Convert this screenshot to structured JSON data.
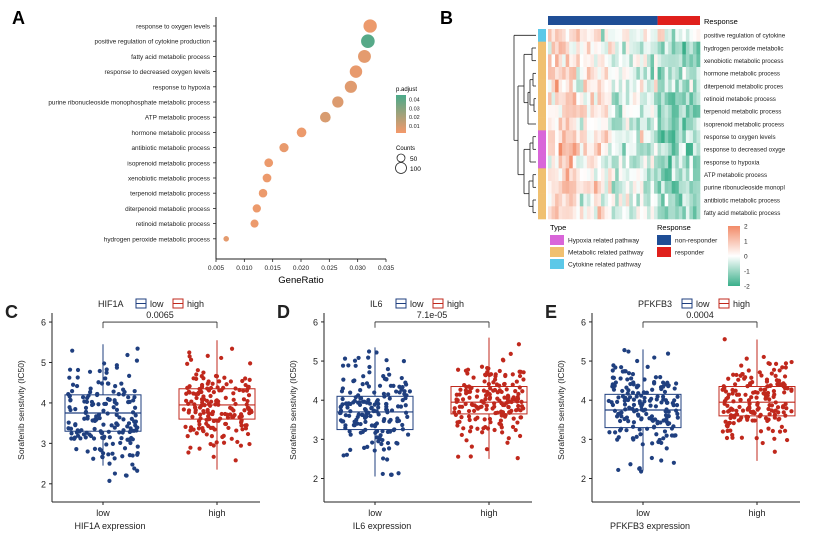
{
  "panels": {
    "A": {
      "label": "A",
      "chart_data": {
        "type": "scatter",
        "xlabel": "GeneRatio",
        "xlim": [
          0.005,
          0.035
        ],
        "xticks": [
          "0.005",
          "0.010",
          "0.015",
          "0.020",
          "0.025",
          "0.030",
          "0.035"
        ],
        "categories": [
          "response to oxygen levels",
          "positive regulation of cytokine production",
          "fatty acid metabolic process",
          "response to decreased oxygen levels",
          "response to hypoxia",
          "purine ribonucleoside monophosphate metabolic process",
          "ATP metabolic process",
          "hormone metabolic process",
          "antibiotic metabolic process",
          "isoprenoid metabolic process",
          "xenobiotic metabolic process",
          "terpenoid metabolic process",
          "diterpenoid metabolic process",
          "retinoid metabolic process",
          "hydrogen peroxide metabolic process"
        ],
        "gene_ratio": [
          0.0322,
          0.0318,
          0.0312,
          0.0297,
          0.0288,
          0.0265,
          0.0243,
          0.0201,
          0.017,
          0.0143,
          0.014,
          0.0133,
          0.0122,
          0.0118,
          0.0068
        ],
        "count": [
          108,
          110,
          104,
          100,
          98,
          90,
          84,
          76,
          72,
          68,
          68,
          66,
          64,
          62,
          40
        ],
        "p_adjust": [
          0.004,
          0.042,
          0.006,
          0.005,
          0.007,
          0.008,
          0.009,
          0.004,
          0.005,
          0.004,
          0.004,
          0.004,
          0.004,
          0.004,
          0.006
        ],
        "color_legend": {
          "title": "p.adjust",
          "ticks": [
            "0.04",
            "0.03",
            "0.02",
            "0.01"
          ],
          "range": [
            0.002,
            0.045
          ],
          "low_color": "#f4996b",
          "high_color": "#4aaa8a"
        },
        "size_legend": {
          "title": "Counts",
          "ticks": [
            "50",
            "100"
          ]
        }
      }
    },
    "B": {
      "label": "B",
      "chart_data": {
        "type": "heatmap",
        "response_header": "Response",
        "rows": [
          "positive regulation of cytokine",
          "hydrogen peroxide metabolic",
          "xenobiotic metabolic process",
          "hormone metabolic process",
          "diterpenoid metabolic proces",
          "retinoid metabolic process",
          "terpenoid metabolic process",
          "isoprenoid metabolic process",
          "response to oxygen levels",
          "response to decreased oxyge",
          "response to hypoxia",
          "ATP metabolic process",
          "purine ribonucleoside monopl",
          "antibiotic metabolic process",
          "fatty acid metabolic process"
        ],
        "row_type": [
          "cytokine",
          "metabolic",
          "metabolic",
          "metabolic",
          "metabolic",
          "metabolic",
          "metabolic",
          "metabolic",
          "hypoxia",
          "hypoxia",
          "hypoxia",
          "metabolic",
          "metabolic",
          "metabolic",
          "metabolic"
        ],
        "columns": {
          "non_responder": 31,
          "responder": 12
        },
        "value_range": [
          -2,
          2
        ],
        "type_legend": {
          "title": "Type",
          "items": [
            {
              "label": "Hypoxia related pathway",
              "color": "#d966d9"
            },
            {
              "label": "Metabolic related pathway",
              "color": "#f0c070"
            },
            {
              "label": "Cytokine related pathway",
              "color": "#5cc8e8"
            }
          ]
        },
        "response_legend": {
          "title": "Response",
          "items": [
            {
              "label": "non-responder",
              "color": "#1f4e96"
            },
            {
              "label": "responder",
              "color": "#e0201c"
            }
          ]
        },
        "scale_legend": {
          "ticks": [
            "2",
            "1",
            "0",
            "-1",
            "-2"
          ],
          "high_color": "#f28b68",
          "low_color": "#3aaf8a"
        }
      }
    },
    "C": {
      "label": "C",
      "chart_data": {
        "type": "box",
        "gene": "HIF1A",
        "legend_low": "low",
        "legend_high": "high",
        "ylabel": "Sorafenib senstivity (IC50)",
        "xlabel": "HIF1A expression",
        "categories": [
          "low",
          "high"
        ],
        "yticks": [
          "2",
          "3",
          "4",
          "5",
          "6"
        ],
        "ylim": [
          1.55,
          6.1
        ],
        "pvalue": "0.0065",
        "box": {
          "low": {
            "min": 2.45,
            "q1": 3.3,
            "median": 3.75,
            "q3": 4.2,
            "max": 5.45,
            "jitter_min": 1.65,
            "jitter_max": 5.45,
            "n": 180
          },
          "high": {
            "min": 2.35,
            "q1": 3.6,
            "median": 3.95,
            "q3": 4.35,
            "max": 5.55,
            "jitter_min": 2.35,
            "jitter_max": 5.6,
            "n": 180
          }
        }
      }
    },
    "D": {
      "label": "D",
      "chart_data": {
        "type": "box",
        "gene": "IL6",
        "legend_low": "low",
        "legend_high": "high",
        "ylabel": "Sorafenib senstivity (IC50)",
        "xlabel": "IL6 expression",
        "categories": [
          "low",
          "high"
        ],
        "yticks": [
          "2",
          "3",
          "4",
          "5",
          "6"
        ],
        "ylim": [
          1.4,
          6.1
        ],
        "pvalue": "7.1e-05",
        "box": {
          "low": {
            "min": 2.05,
            "q1": 3.25,
            "median": 3.7,
            "q3": 4.1,
            "max": 5.35,
            "jitter_min": 1.6,
            "jitter_max": 5.35,
            "n": 180
          },
          "high": {
            "min": 2.5,
            "q1": 3.65,
            "median": 3.95,
            "q3": 4.35,
            "max": 5.6,
            "jitter_min": 2.45,
            "jitter_max": 5.6,
            "n": 180
          }
        }
      }
    },
    "E": {
      "label": "E",
      "chart_data": {
        "type": "box",
        "gene": "PFKFB3",
        "legend_low": "low",
        "legend_high": "high",
        "ylabel": "Sorafenib senstivity (IC50)",
        "xlabel": "PFKFB3 expression",
        "categories": [
          "low",
          "high"
        ],
        "yticks": [
          "2",
          "3",
          "4",
          "5",
          "6"
        ],
        "ylim": [
          1.4,
          6.1
        ],
        "pvalue": "0.0004",
        "box": {
          "low": {
            "min": 2.2,
            "q1": 3.3,
            "median": 3.75,
            "q3": 4.15,
            "max": 5.3,
            "jitter_min": 1.7,
            "jitter_max": 5.3,
            "n": 180
          },
          "high": {
            "min": 2.45,
            "q1": 3.6,
            "median": 3.95,
            "q3": 4.35,
            "max": 5.55,
            "jitter_min": 1.55,
            "jitter_max": 5.6,
            "n": 180
          }
        }
      }
    }
  }
}
